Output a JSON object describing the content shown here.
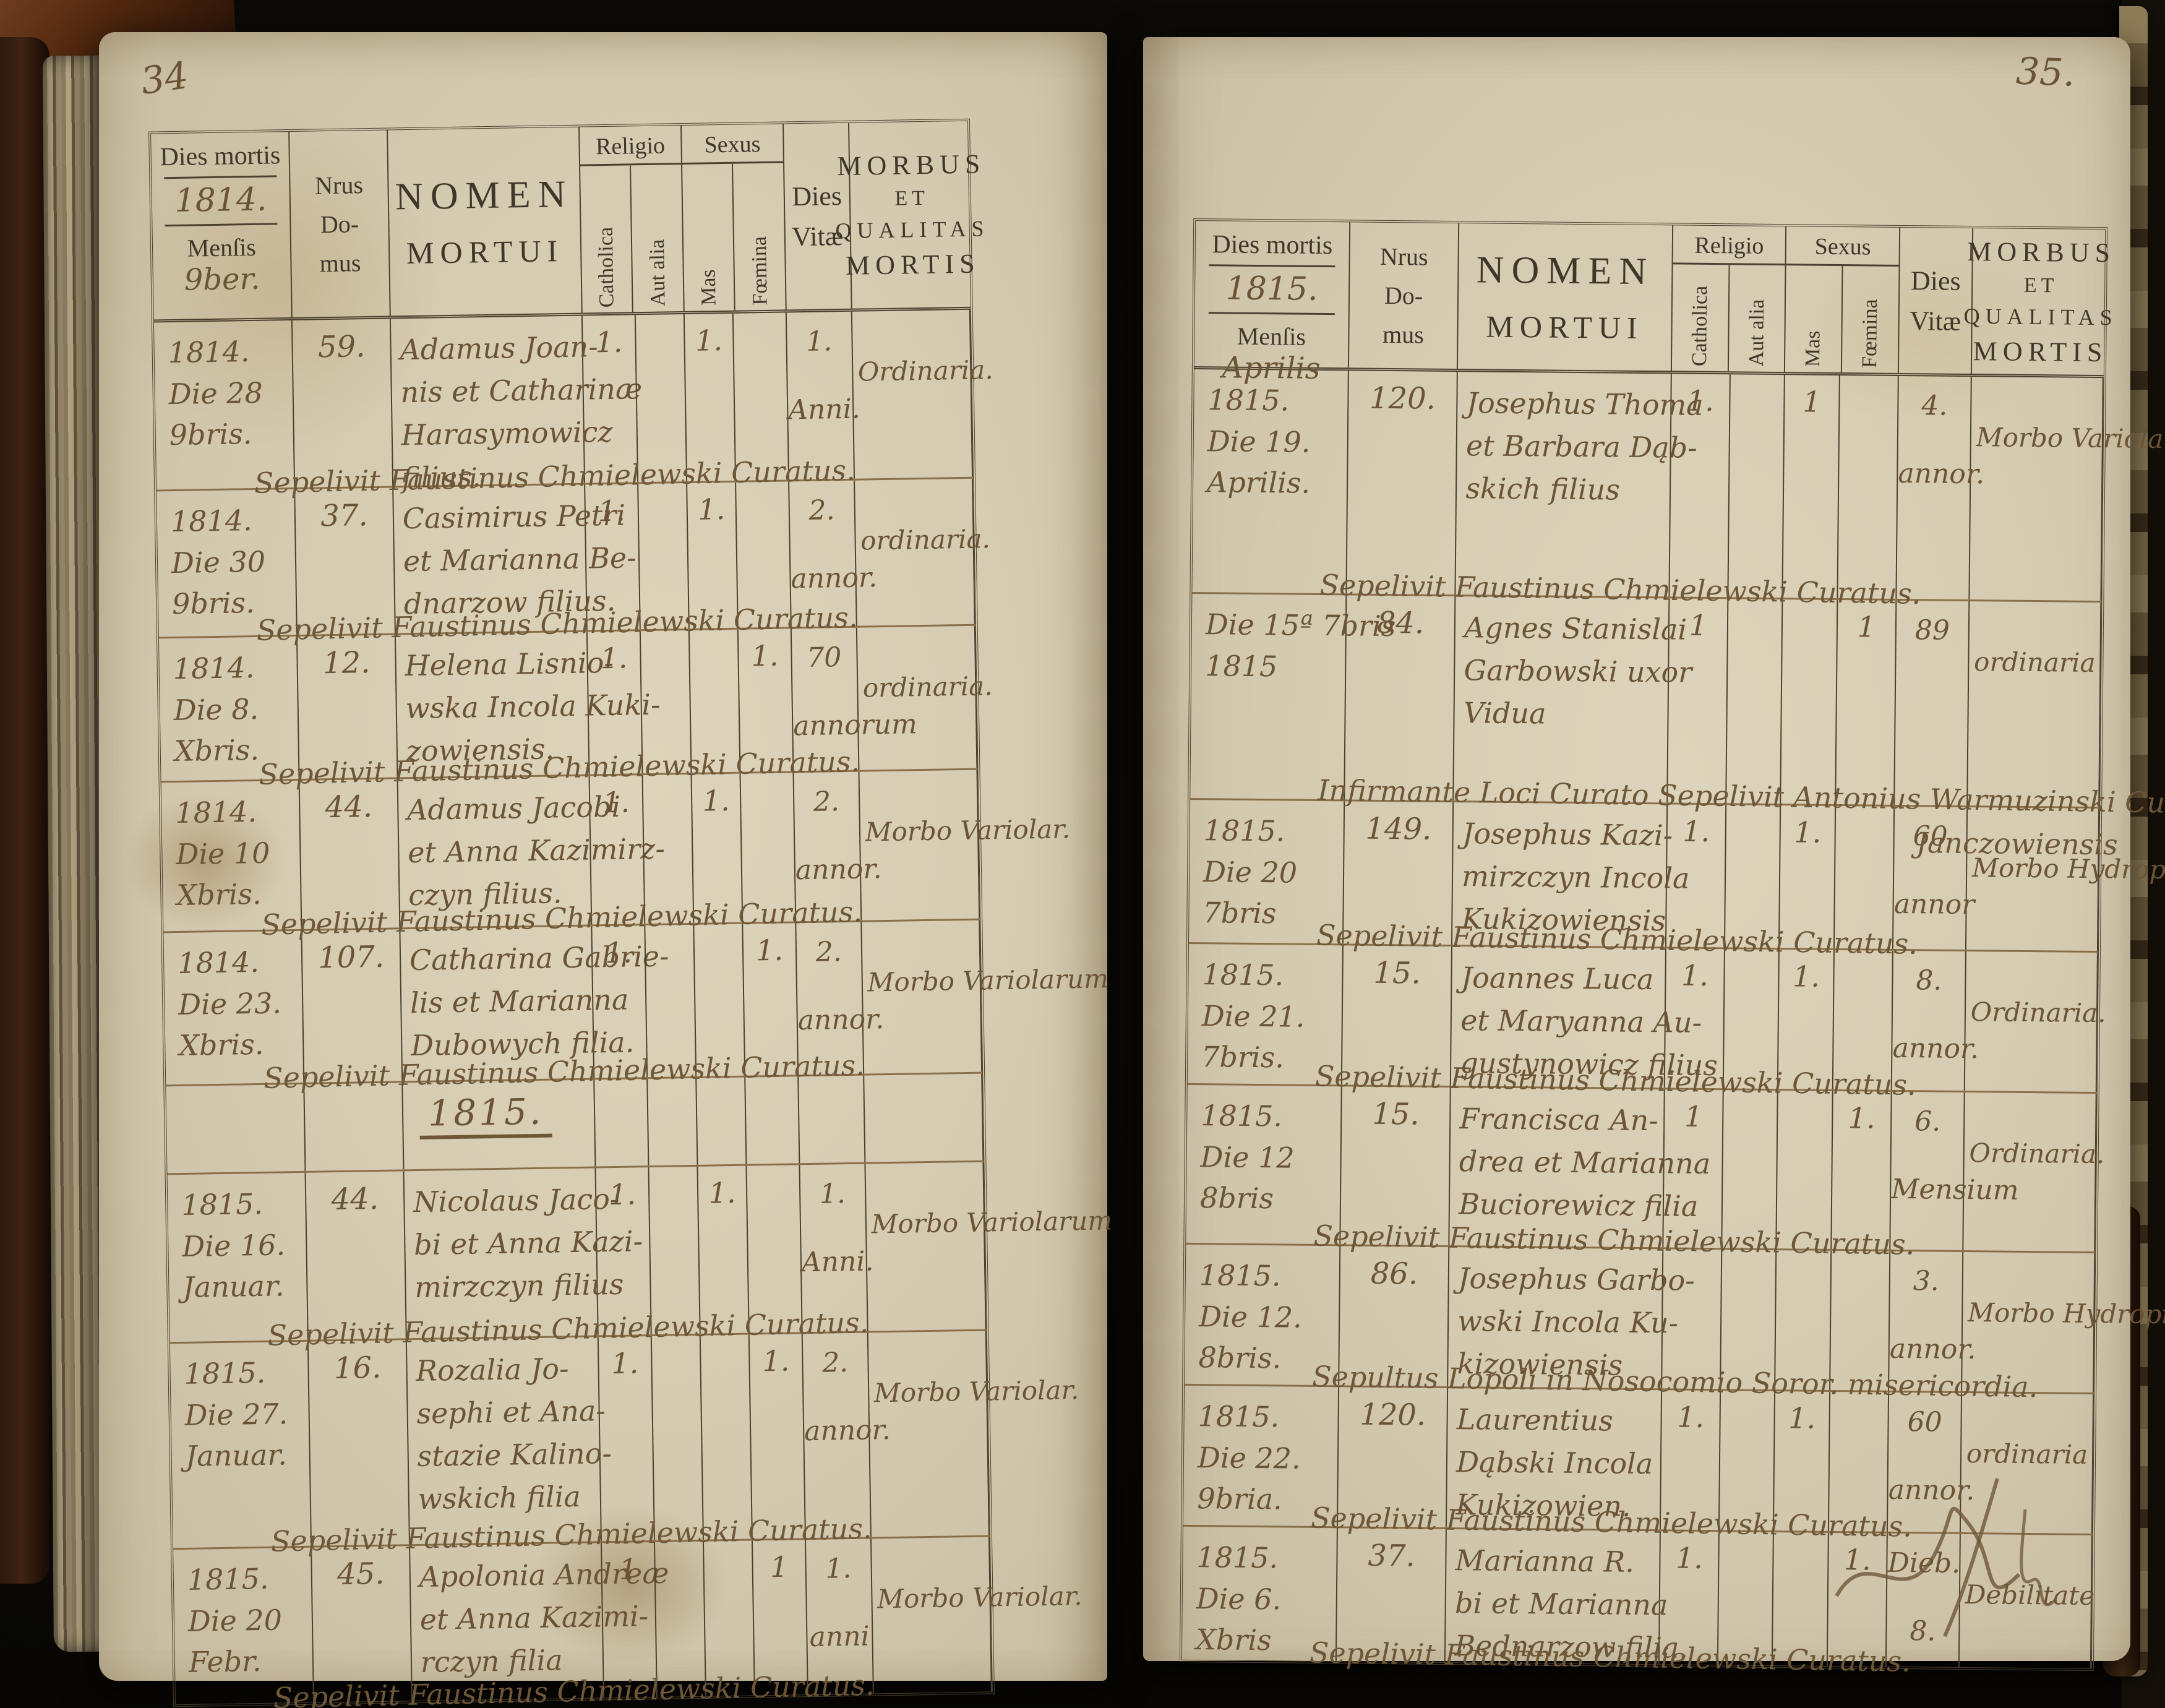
{
  "book": {
    "page_number_left": "34",
    "page_number_right": "35.",
    "column_headers": {
      "dies_mortis": "Dies mortis",
      "mensis": "Menſis",
      "nrus": "Nrus",
      "do_": "Do-",
      "mus": "mus",
      "nomen_line1": "NOMEN",
      "nomen_line2": "MORTUI",
      "religio": "Religio",
      "catholica": "Catholica",
      "aut_alia": "Aut alia",
      "sexus": "Sexus",
      "mas": "Mas",
      "foemina": "Fœmina",
      "dies_vitae_line1": "Dies",
      "dies_vitae_line2": "Vitæ",
      "morbus_line1": "MORBUS",
      "morbus_line2": "ET",
      "morbus_line3": "QUALITAS",
      "morbus_line4": "MORTIS"
    },
    "left_page": {
      "year": "1814.",
      "month": "9ber.",
      "mid_year_heading": "1815.",
      "rows": [
        {
          "date": [
            "1814.",
            "Die 28",
            "9bris."
          ],
          "nrus": "59.",
          "name": [
            "Adamus Joan-",
            "nis et Catharinæ",
            "Harasymowicz",
            "filius."
          ],
          "catholica": "1.",
          "aut_alia": "",
          "mas": "1.",
          "foemina": "",
          "dies_vitae": [
            "1.",
            "Anni."
          ],
          "morbus": "Ordinaria.",
          "sepelivit": "Sepelivit Faustinus Chmielewski Curatus."
        },
        {
          "date": [
            "1814.",
            "Die 30",
            "9bris."
          ],
          "nrus": "37.",
          "name": [
            "Casimirus Petri",
            "et Marianna Be-",
            "dnarzow filius."
          ],
          "catholica": "1.",
          "aut_alia": "",
          "mas": "1.",
          "foemina": "",
          "dies_vitae": [
            "2.",
            "annor."
          ],
          "morbus": "ordinaria.",
          "sepelivit": "Sepelivit Faustinus Chmielewski Curatus."
        },
        {
          "date": [
            "1814.",
            "Die 8.",
            "Xbris."
          ],
          "nrus": "12.",
          "name": [
            "Helena Lisnio-",
            "wska Incola Kuki-",
            "zowiensis."
          ],
          "catholica": "1.",
          "aut_alia": "",
          "mas": "",
          "foemina": "1.",
          "dies_vitae": [
            "70",
            "annorum"
          ],
          "morbus": "ordinaria.",
          "sepelivit": "Sepelivit Faustinus Chmielewski Curatus."
        },
        {
          "date": [
            "1814.",
            "Die 10",
            "Xbris."
          ],
          "nrus": "44.",
          "name": [
            "Adamus Jacobi",
            "et Anna Kazimirz-",
            "czyn filius."
          ],
          "catholica": "1.",
          "aut_alia": "",
          "mas": "1.",
          "foemina": "",
          "dies_vitae": [
            "2.",
            "annor."
          ],
          "morbus": "Morbo Variolar.",
          "sepelivit": "Sepelivit Faustinus Chmielewski Curatus."
        },
        {
          "date": [
            "1814.",
            "Die 23.",
            "Xbris."
          ],
          "nrus": "107.",
          "name": [
            "Catharina Gabrie-",
            "lis et Marianna",
            "Dubowych filia."
          ],
          "catholica": "1.",
          "aut_alia": "",
          "mas": "",
          "foemina": "1.",
          "dies_vitae": [
            "2.",
            "annor."
          ],
          "morbus": "Morbo Variolarum",
          "sepelivit": "Sepelivit Faustinus Chmielewski Curatus."
        },
        {
          "date": [
            "1815.",
            "Die 16.",
            "Januar."
          ],
          "nrus": "44.",
          "name": [
            "Nicolaus Jaco-",
            "bi et Anna Kazi-",
            "mirzczyn filius"
          ],
          "catholica": "1.",
          "aut_alia": "",
          "mas": "1.",
          "foemina": "",
          "dies_vitae": [
            "1.",
            "Anni."
          ],
          "morbus": "Morbo Variolarum",
          "sepelivit": "Sepelivit Faustinus Chmielewski Curatus."
        },
        {
          "date": [
            "1815.",
            "Die 27.",
            "Januar."
          ],
          "nrus": "16.",
          "name": [
            "Rozalia Jo-",
            "sephi et Ana-",
            "stazie Kalino-",
            "wskich filia"
          ],
          "catholica": "1.",
          "aut_alia": "",
          "mas": "",
          "foemina": "1.",
          "dies_vitae": [
            "2.",
            "annor."
          ],
          "morbus": "Morbo Variolar.",
          "sepelivit": "Sepelivit Faustinus Chmielewski Curatus."
        },
        {
          "date": [
            "1815.",
            "Die 20",
            "Febr."
          ],
          "nrus": "45.",
          "name": [
            "Apolonia Andreæ",
            "et Anna Kazimi-",
            "rczyn filia"
          ],
          "catholica": "1",
          "aut_alia": "",
          "mas": "",
          "foemina": "1",
          "dies_vitae": [
            "1.",
            "anni"
          ],
          "morbus": "Morbo Variolar.",
          "sepelivit": "Sepelivit Faustinus Chmielewski Curatus."
        }
      ]
    },
    "right_page": {
      "year": "1815.",
      "month": "Aprilis",
      "rows": [
        {
          "date": [
            "1815.",
            "Die 19.",
            "Aprilis."
          ],
          "nrus": "120.",
          "name": [
            "Josephus Thoma",
            "et Barbara Dąb-",
            "skich filius"
          ],
          "catholica": "1.",
          "aut_alia": "",
          "mas": "1",
          "foemina": "",
          "dies_vitae": [
            "4.",
            "annor."
          ],
          "morbus": "Morbo Variolar.",
          "sepelivit": "Sepelivit Faustinus Chmielewski Curatus."
        },
        {
          "date": [
            "Die 15ª 7bris",
            "1815"
          ],
          "nrus": "84.",
          "name": [
            "Agnes Stanislai",
            "Garbowski uxor",
            "Vidua"
          ],
          "catholica": "1",
          "aut_alia": "",
          "mas": "",
          "foemina": "1",
          "dies_vitae": [
            "89"
          ],
          "morbus": "ordinaria",
          "sepelivit": "Infirmante Loci Curato Sepelivit Antonius Warmuzinski Curato",
          "sepelivit2": "Janczowiensis"
        },
        {
          "date": [
            "1815.",
            "Die 20",
            "7bris"
          ],
          "nrus": "149.",
          "name": [
            "Josephus Kazi-",
            "mirzczyn Incola",
            "Kukizowiensis"
          ],
          "catholica": "1.",
          "aut_alia": "",
          "mas": "1.",
          "foemina": "",
          "dies_vitae": [
            "60",
            "annor"
          ],
          "morbus": "Morbo Hydrops.",
          "sepelivit": "Sepelivit Faustinus Chmielewski Curatus."
        },
        {
          "date": [
            "1815.",
            "Die 21.",
            "7bris."
          ],
          "nrus": "15.",
          "name": [
            "Joannes Luca",
            "et Maryanna Au-",
            "gustynowicz filius"
          ],
          "catholica": "1.",
          "aut_alia": "",
          "mas": "1.",
          "foemina": "",
          "dies_vitae": [
            "8.",
            "annor."
          ],
          "morbus": "Ordinaria.",
          "sepelivit": "Sepelivit Faustinus Chmielewski Curatus."
        },
        {
          "date": [
            "1815.",
            "Die 12",
            "8bris"
          ],
          "nrus": "15.",
          "name": [
            "Francisca An-",
            "drea et Marianna",
            "Buciorewicz filia"
          ],
          "catholica": "1",
          "aut_alia": "",
          "mas": "",
          "foemina": "1.",
          "dies_vitae": [
            "6.",
            "Mensium"
          ],
          "morbus": "Ordinaria.",
          "sepelivit": "Sepelivit Faustinus Chmielewski Curatus."
        },
        {
          "date": [
            "1815.",
            "Die 12.",
            "8bris."
          ],
          "nrus": "86.",
          "name": [
            "Josephus Garbo-",
            "wski Incola Ku-",
            "kizowiensis"
          ],
          "catholica": "",
          "aut_alia": "",
          "mas": "",
          "foemina": "",
          "dies_vitae": [
            "3.",
            "annor."
          ],
          "morbus": "Morbo Hydropisis.",
          "sepelivit": "Sepultus Lopoli in Nosocomio Soror. misericordia."
        },
        {
          "date": [
            "1815.",
            "Die 22.",
            "9bria."
          ],
          "nrus": "120.",
          "name": [
            "Laurentius",
            "Dąbski Incola",
            "Kukizowien."
          ],
          "catholica": "1.",
          "aut_alia": "",
          "mas": "1.",
          "foemina": "",
          "dies_vitae": [
            "60",
            "annor."
          ],
          "morbus": "ordinaria",
          "sepelivit": "Sepelivit Faustinus Chmielewski Curatus."
        },
        {
          "date": [
            "1815.",
            "Die 6.",
            "Xbris"
          ],
          "nrus": "37.",
          "name": [
            "Marianna R.",
            "bi et Marianna",
            "Bednarzow filia."
          ],
          "catholica": "1.",
          "aut_alia": "",
          "mas": "",
          "foemina": "1.",
          "dies_vitae": [
            "Dieb.",
            "8."
          ],
          "morbus": "Debilitate",
          "sepelivit": "Sepelivit Faustinus Chmielewski Curatus."
        }
      ]
    }
  }
}
